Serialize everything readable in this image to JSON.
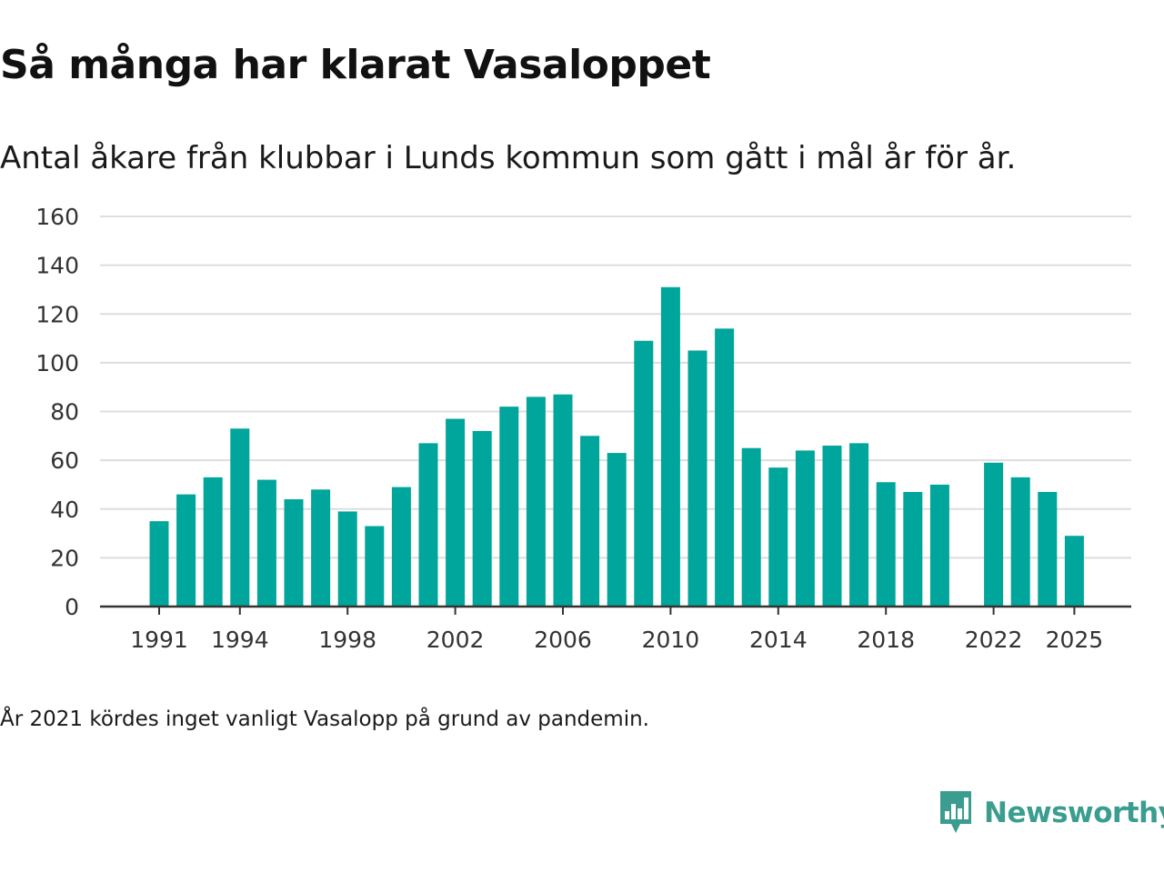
{
  "header": {
    "title": "Så många har klarat Vasaloppet",
    "subtitle": "Antal åkare från klubbar i Lunds kommun som gått i mål år för år."
  },
  "footer": {
    "note": "År 2021 kördes inget vanligt Vasalopp på grund av pandemin.",
    "brand": "Newsworthy"
  },
  "colors": {
    "bar": "#00a59b",
    "grid": "#dddddd",
    "axis": "#333333",
    "text": "#333333",
    "brand": "#3a9d8f"
  },
  "icons": {
    "brand": "newsworthy-logo-icon"
  },
  "chart_data": {
    "type": "bar",
    "title": "Så många har klarat Vasaloppet",
    "subtitle": "Antal åkare från klubbar i Lunds kommun som gått i mål år för år.",
    "xlabel": "",
    "ylabel": "",
    "ylim": [
      0,
      160
    ],
    "yticks": [
      0,
      20,
      40,
      60,
      80,
      100,
      120,
      140,
      160
    ],
    "xticks": [
      "1991",
      "1994",
      "1998",
      "2002",
      "2006",
      "2010",
      "2014",
      "2018",
      "2022",
      "2025"
    ],
    "grid": true,
    "legend": "none",
    "categories": [
      "1991",
      "1992",
      "1993",
      "1994",
      "1995",
      "1996",
      "1997",
      "1998",
      "1999",
      "2000",
      "2001",
      "2002",
      "2003",
      "2004",
      "2005",
      "2006",
      "2007",
      "2008",
      "2009",
      "2010",
      "2011",
      "2012",
      "2013",
      "2014",
      "2015",
      "2016",
      "2017",
      "2018",
      "2019",
      "2020",
      "2021",
      "2022",
      "2023",
      "2024",
      "2025"
    ],
    "values": [
      35,
      46,
      53,
      73,
      52,
      44,
      48,
      39,
      33,
      49,
      67,
      77,
      72,
      82,
      86,
      87,
      70,
      63,
      109,
      131,
      105,
      114,
      65,
      57,
      64,
      66,
      67,
      51,
      47,
      50,
      null,
      59,
      53,
      47,
      29
    ]
  }
}
